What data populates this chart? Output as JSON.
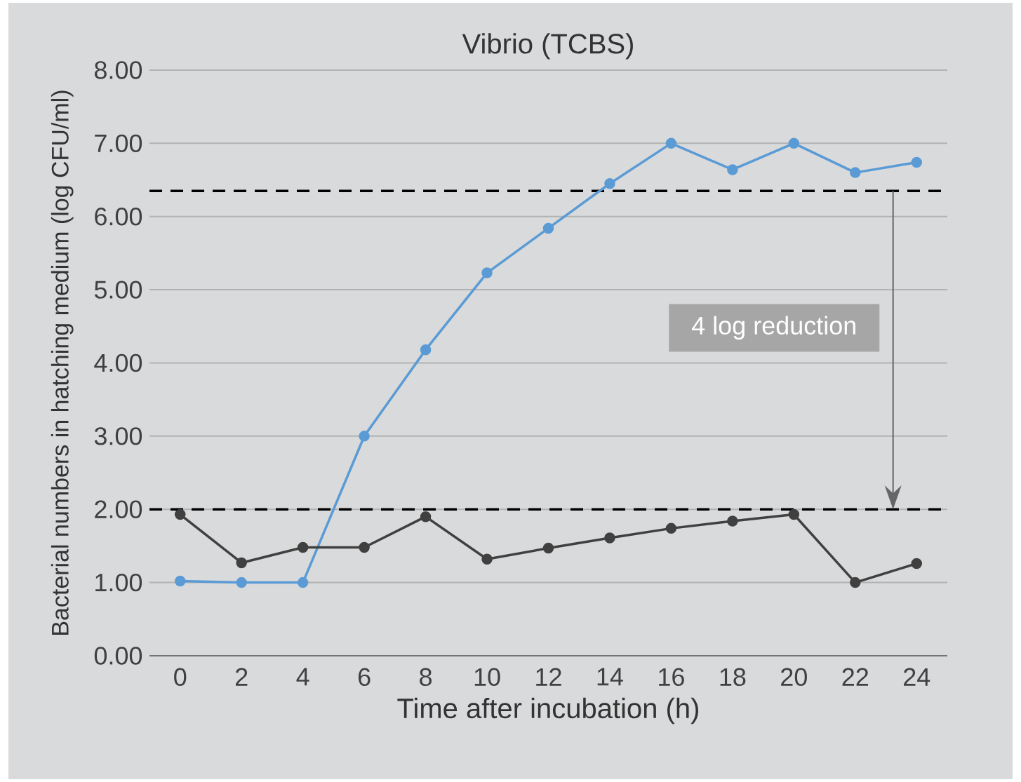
{
  "chart_data": {
    "type": "line",
    "title": "Vibrio (TCBS)",
    "xlabel": "Time after incubation (h)",
    "ylabel": "Bacterial numbers in hatching medium (log CFU/ml)",
    "x": [
      0,
      2,
      4,
      6,
      8,
      10,
      12,
      14,
      16,
      18,
      20,
      22,
      24
    ],
    "series": [
      {
        "color": "#5b9bd5",
        "values": [
          1.02,
          1.0,
          1.0,
          3.0,
          4.18,
          5.23,
          5.84,
          6.45,
          7.0,
          6.64,
          7.0,
          6.6,
          6.74
        ]
      },
      {
        "color": "#404040",
        "values": [
          1.93,
          1.27,
          1.48,
          1.48,
          1.9,
          1.32,
          1.47,
          1.61,
          1.74,
          1.84,
          1.93,
          1.0,
          1.26
        ]
      }
    ],
    "xlim": [
      -1,
      25
    ],
    "ylim": [
      0,
      8
    ],
    "xticks": [
      0,
      2,
      4,
      6,
      8,
      10,
      12,
      14,
      16,
      18,
      20,
      22,
      24
    ],
    "yticks": [
      {
        "value": 0,
        "label": "0.00"
      },
      {
        "value": 1,
        "label": "1.00"
      },
      {
        "value": 2,
        "label": "2.00"
      },
      {
        "value": 3,
        "label": "3.00"
      },
      {
        "value": 4,
        "label": "4.00"
      },
      {
        "value": 5,
        "label": "5.00"
      },
      {
        "value": 6,
        "label": "6.00"
      },
      {
        "value": 7,
        "label": "7.00"
      },
      {
        "value": 8,
        "label": "8.00"
      }
    ],
    "ref_lines": [
      {
        "axis": "y",
        "value": 6.35,
        "color": "#000000",
        "line_style": "dashed"
      },
      {
        "axis": "y",
        "value": 2.0,
        "color": "#000000",
        "line_style": "dashed"
      }
    ],
    "annotations": [
      "4 log reduction"
    ],
    "grid": "y",
    "marker": "circle",
    "line_style": "solid"
  }
}
